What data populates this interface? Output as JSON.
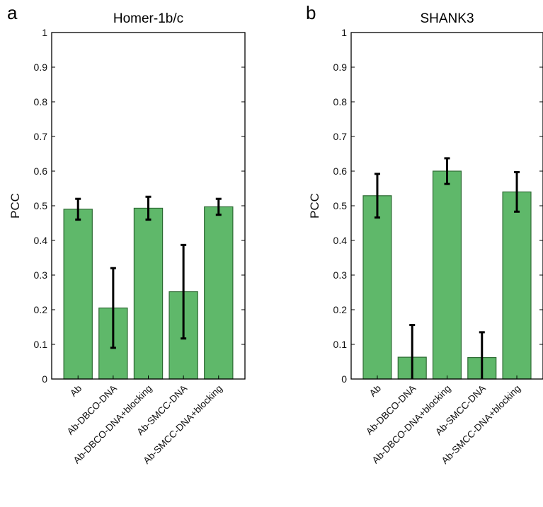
{
  "bar_color": "#5fb86a",
  "bar_edge": "#2e6b34",
  "chart_data": [
    {
      "panel": "a",
      "type": "bar",
      "title": "Homer-1b/c",
      "ylabel": "PCC",
      "xlabel": "",
      "ylim": [
        0,
        1
      ],
      "yticks": [
        "0",
        "0.1",
        "0.2",
        "0.3",
        "0.4",
        "0.5",
        "0.6",
        "0.7",
        "0.8",
        "0.9",
        "1"
      ],
      "grid": false,
      "categories": [
        "Ab",
        "Ab-DBCO-DNA",
        "Ab-DBCO-DNA+blocking",
        "Ab-SMCC-DNA",
        "Ab-SMCC-DNA+blocking"
      ],
      "values": [
        0.49,
        0.205,
        0.493,
        0.252,
        0.497
      ],
      "error": [
        0.03,
        0.115,
        0.033,
        0.135,
        0.023
      ]
    },
    {
      "panel": "b",
      "type": "bar",
      "title": "SHANK3",
      "ylabel": "PCC",
      "xlabel": "",
      "ylim": [
        0,
        1
      ],
      "yticks": [
        "0",
        "0.1",
        "0.2",
        "0.3",
        "0.4",
        "0.5",
        "0.6",
        "0.7",
        "0.8",
        "0.9",
        "1"
      ],
      "grid": false,
      "categories": [
        "Ab",
        "Ab-DBCO-DNA",
        "Ab-DBCO-DNA+blocking",
        "Ab-SMCC-DNA",
        "Ab-SMCC-DNA+blocking"
      ],
      "values": [
        0.529,
        0.063,
        0.6,
        0.062,
        0.54
      ],
      "error": [
        0.063,
        0.093,
        0.037,
        0.073,
        0.057
      ]
    }
  ]
}
